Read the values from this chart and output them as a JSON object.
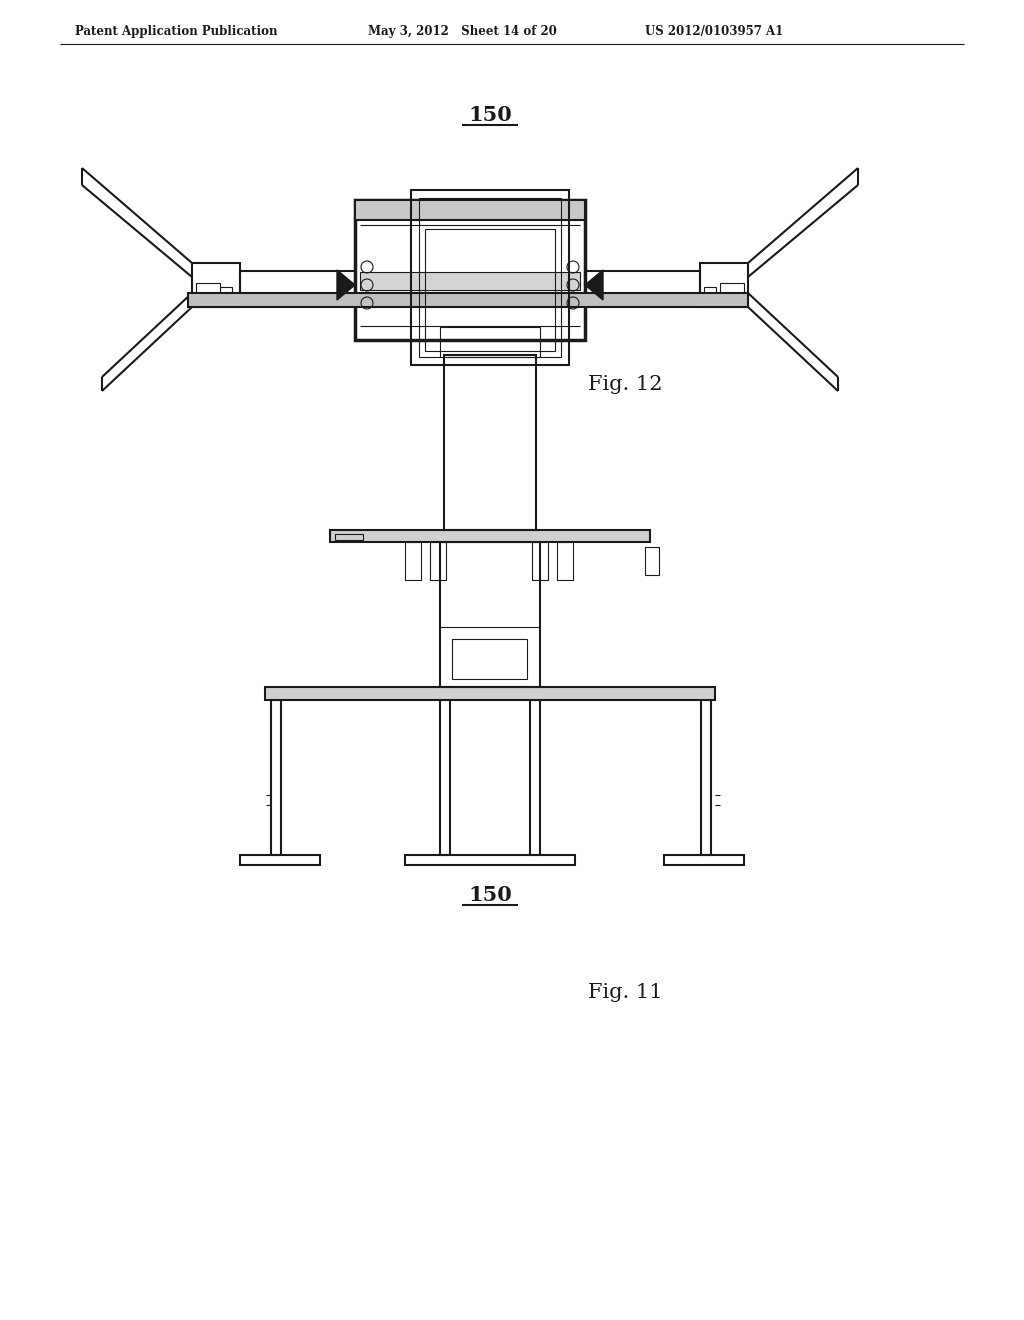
{
  "bg_color": "#ffffff",
  "header_left": "Patent Application Publication",
  "header_mid": "May 3, 2012   Sheet 14 of 20",
  "header_right": "US 2012/0103957 A1",
  "fig12_label": "Fig. 12",
  "fig11_label": "Fig. 11",
  "ref_150_top": "150",
  "ref_150_bot": "150",
  "line_color": "#1a1a1a",
  "lw": 1.5,
  "lw_thin": 0.8,
  "lw_thick": 2.5
}
